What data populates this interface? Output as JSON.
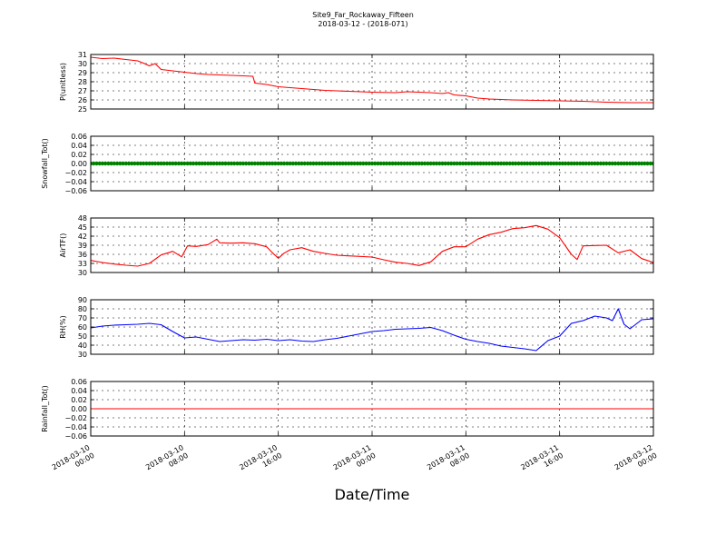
{
  "title_line1": "Site9_Far_Rockaway_Fifteen",
  "title_line2": "2018-03-12 - (2018-071)",
  "xlabel": "Date/Time",
  "x_ticks": [
    {
      "line1": "2018-03-10",
      "line2": "00:00"
    },
    {
      "line1": "2018-03-10",
      "line2": "08:00"
    },
    {
      "line1": "2018-03-10",
      "line2": "16:00"
    },
    {
      "line1": "2018-03-11",
      "line2": "00:00"
    },
    {
      "line1": "2018-03-11",
      "line2": "08:00"
    },
    {
      "line1": "2018-03-11",
      "line2": "16:00"
    },
    {
      "line1": "2018-03-12",
      "line2": "00:00"
    }
  ],
  "chart_data": [
    {
      "type": "line",
      "ylabel": "P(unitless)",
      "xlim": [
        "2018-03-10 00:00",
        "2018-03-12 00:00"
      ],
      "ylim": [
        25,
        31
      ],
      "yticks": [
        "25",
        "26",
        "27",
        "28",
        "29",
        "30",
        "31"
      ],
      "grid": true,
      "color": "#ff0000",
      "points": [
        [
          "2018-03-10 00:00",
          30.7
        ],
        [
          "2018-03-10 01:00",
          30.55
        ],
        [
          "2018-03-10 02:00",
          30.6
        ],
        [
          "2018-03-10 03:00",
          30.45
        ],
        [
          "2018-03-10 04:00",
          30.3
        ],
        [
          "2018-03-10 04:30",
          30.05
        ],
        [
          "2018-03-10 05:00",
          29.75
        ],
        [
          "2018-03-10 05:30",
          30.0
        ],
        [
          "2018-03-10 06:00",
          29.35
        ],
        [
          "2018-03-10 07:00",
          29.2
        ],
        [
          "2018-03-10 08:00",
          29.05
        ],
        [
          "2018-03-10 09:00",
          28.9
        ],
        [
          "2018-03-10 10:00",
          28.8
        ],
        [
          "2018-03-10 11:00",
          28.75
        ],
        [
          "2018-03-10 12:00",
          28.7
        ],
        [
          "2018-03-10 13:00",
          28.65
        ],
        [
          "2018-03-10 13:50",
          28.6
        ],
        [
          "2018-03-10 14:00",
          27.85
        ],
        [
          "2018-03-10 15:00",
          27.7
        ],
        [
          "2018-03-10 16:00",
          27.45
        ],
        [
          "2018-03-10 17:00",
          27.35
        ],
        [
          "2018-03-10 18:00",
          27.25
        ],
        [
          "2018-03-10 19:00",
          27.15
        ],
        [
          "2018-03-10 20:00",
          27.05
        ],
        [
          "2018-03-10 21:00",
          27.0
        ],
        [
          "2018-03-10 22:00",
          26.95
        ],
        [
          "2018-03-11 00:00",
          26.85
        ],
        [
          "2018-03-11 02:00",
          26.8
        ],
        [
          "2018-03-11 03:00",
          26.9
        ],
        [
          "2018-03-11 04:00",
          26.85
        ],
        [
          "2018-03-11 05:00",
          26.8
        ],
        [
          "2018-03-11 06:00",
          26.7
        ],
        [
          "2018-03-11 06:30",
          26.8
        ],
        [
          "2018-03-11 07:00",
          26.55
        ],
        [
          "2018-03-11 08:00",
          26.45
        ],
        [
          "2018-03-11 09:00",
          26.2
        ],
        [
          "2018-03-11 10:00",
          26.1
        ],
        [
          "2018-03-11 12:00",
          26.0
        ],
        [
          "2018-03-11 14:00",
          25.95
        ],
        [
          "2018-03-11 16:00",
          25.9
        ],
        [
          "2018-03-11 18:00",
          25.85
        ],
        [
          "2018-03-11 20:00",
          25.75
        ],
        [
          "2018-03-11 22:00",
          25.7
        ],
        [
          "2018-03-12 00:00",
          25.7
        ]
      ]
    },
    {
      "type": "scatter",
      "ylabel": "Snowfall_Tot()",
      "xlim": [
        "2018-03-10 00:00",
        "2018-03-12 00:00"
      ],
      "ylim": [
        -0.06,
        0.06
      ],
      "yticks": [
        "−0.06",
        "−0.04",
        "−0.02",
        "0.00",
        "0.02",
        "0.04",
        "0.06"
      ],
      "grid": true,
      "color": "#008000",
      "interval_minutes": 15,
      "constant_value": 0.0
    },
    {
      "type": "line",
      "ylabel": "AirTF()",
      "xlim": [
        "2018-03-10 00:00",
        "2018-03-12 00:00"
      ],
      "ylim": [
        30,
        48
      ],
      "yticks": [
        "30",
        "33",
        "36",
        "39",
        "42",
        "45",
        "48"
      ],
      "grid": true,
      "color": "#ff0000",
      "points": [
        [
          "2018-03-10 00:00",
          34.0
        ],
        [
          "2018-03-10 01:00",
          33.3
        ],
        [
          "2018-03-10 02:00",
          32.8
        ],
        [
          "2018-03-10 03:00",
          32.4
        ],
        [
          "2018-03-10 04:00",
          32.1
        ],
        [
          "2018-03-10 05:00",
          33.0
        ],
        [
          "2018-03-10 06:00",
          35.8
        ],
        [
          "2018-03-10 07:00",
          37.0
        ],
        [
          "2018-03-10 07:45",
          35.2
        ],
        [
          "2018-03-10 08:15",
          38.8
        ],
        [
          "2018-03-10 09:00",
          38.6
        ],
        [
          "2018-03-10 10:00",
          39.2
        ],
        [
          "2018-03-10 10:45",
          41.0
        ],
        [
          "2018-03-10 11:00",
          39.8
        ],
        [
          "2018-03-10 12:00",
          39.7
        ],
        [
          "2018-03-10 13:00",
          39.8
        ],
        [
          "2018-03-10 14:00",
          39.5
        ],
        [
          "2018-03-10 15:00",
          38.5
        ],
        [
          "2018-03-10 15:30",
          36.5
        ],
        [
          "2018-03-10 16:00",
          34.7
        ],
        [
          "2018-03-10 16:30",
          36.4
        ],
        [
          "2018-03-10 17:00",
          37.5
        ],
        [
          "2018-03-10 18:00",
          38.2
        ],
        [
          "2018-03-10 19:00",
          37.0
        ],
        [
          "2018-03-10 20:00",
          36.3
        ],
        [
          "2018-03-10 21:00",
          35.7
        ],
        [
          "2018-03-10 22:00",
          35.5
        ],
        [
          "2018-03-11 00:00",
          35.1
        ],
        [
          "2018-03-11 01:00",
          34.2
        ],
        [
          "2018-03-11 02:00",
          33.4
        ],
        [
          "2018-03-11 03:00",
          33.0
        ],
        [
          "2018-03-11 04:00",
          32.3
        ],
        [
          "2018-03-11 05:00",
          33.5
        ],
        [
          "2018-03-11 06:00",
          37.0
        ],
        [
          "2018-03-11 07:00",
          38.5
        ],
        [
          "2018-03-11 08:00",
          38.5
        ],
        [
          "2018-03-11 09:00",
          41.0
        ],
        [
          "2018-03-11 10:00",
          42.5
        ],
        [
          "2018-03-11 11:00",
          43.3
        ],
        [
          "2018-03-11 12:00",
          44.5
        ],
        [
          "2018-03-11 13:00",
          44.8
        ],
        [
          "2018-03-11 14:00",
          45.5
        ],
        [
          "2018-03-11 15:00",
          44.3
        ],
        [
          "2018-03-11 16:00",
          41.5
        ],
        [
          "2018-03-11 17:00",
          36.0
        ],
        [
          "2018-03-11 17:30",
          34.3
        ],
        [
          "2018-03-11 18:00",
          38.8
        ],
        [
          "2018-03-11 19:00",
          38.9
        ],
        [
          "2018-03-11 20:00",
          39.0
        ],
        [
          "2018-03-11 21:00",
          36.5
        ],
        [
          "2018-03-11 22:00",
          37.5
        ],
        [
          "2018-03-11 23:00",
          34.6
        ],
        [
          "2018-03-12 00:00",
          33.3
        ]
      ]
    },
    {
      "type": "line",
      "ylabel": "RH(%)",
      "xlim": [
        "2018-03-10 00:00",
        "2018-03-12 00:00"
      ],
      "ylim": [
        30,
        90
      ],
      "yticks": [
        "30",
        "40",
        "50",
        "60",
        "70",
        "80",
        "90"
      ],
      "grid": true,
      "color": "#0000ff",
      "points": [
        [
          "2018-03-10 00:00",
          59.0
        ],
        [
          "2018-03-10 01:00",
          61.0
        ],
        [
          "2018-03-10 02:00",
          62.0
        ],
        [
          "2018-03-10 03:00",
          62.5
        ],
        [
          "2018-03-10 04:00",
          63.0
        ],
        [
          "2018-03-10 05:00",
          64.0
        ],
        [
          "2018-03-10 06:00",
          62.5
        ],
        [
          "2018-03-10 07:00",
          55.0
        ],
        [
          "2018-03-10 08:00",
          48.0
        ],
        [
          "2018-03-10 09:00",
          49.0
        ],
        [
          "2018-03-10 10:00",
          46.5
        ],
        [
          "2018-03-10 11:00",
          44.0
        ],
        [
          "2018-03-10 12:00",
          45.0
        ],
        [
          "2018-03-10 13:00",
          46.0
        ],
        [
          "2018-03-10 14:00",
          45.5
        ],
        [
          "2018-03-10 15:00",
          46.5
        ],
        [
          "2018-03-10 16:00",
          45.0
        ],
        [
          "2018-03-10 17:00",
          46.0
        ],
        [
          "2018-03-10 18:00",
          44.5
        ],
        [
          "2018-03-10 19:00",
          44.0
        ],
        [
          "2018-03-10 20:00",
          46.0
        ],
        [
          "2018-03-10 21:00",
          47.5
        ],
        [
          "2018-03-10 22:00",
          50.0
        ],
        [
          "2018-03-10 23:00",
          52.5
        ],
        [
          "2018-03-11 00:00",
          55.0
        ],
        [
          "2018-03-11 01:00",
          56.0
        ],
        [
          "2018-03-11 02:00",
          57.5
        ],
        [
          "2018-03-11 03:00",
          58.0
        ],
        [
          "2018-03-11 04:00",
          58.5
        ],
        [
          "2018-03-11 05:00",
          59.5
        ],
        [
          "2018-03-11 06:00",
          56.0
        ],
        [
          "2018-03-11 07:00",
          51.0
        ],
        [
          "2018-03-11 08:00",
          46.5
        ],
        [
          "2018-03-11 09:00",
          44.0
        ],
        [
          "2018-03-11 10:00",
          42.0
        ],
        [
          "2018-03-11 11:00",
          39.0
        ],
        [
          "2018-03-11 12:00",
          37.5
        ],
        [
          "2018-03-11 13:00",
          36.0
        ],
        [
          "2018-03-11 14:00",
          34.0
        ],
        [
          "2018-03-11 15:00",
          45.0
        ],
        [
          "2018-03-11 16:00",
          50.0
        ],
        [
          "2018-03-11 17:00",
          64.0
        ],
        [
          "2018-03-11 18:00",
          67.0
        ],
        [
          "2018-03-11 19:00",
          72.0
        ],
        [
          "2018-03-11 20:00",
          70.0
        ],
        [
          "2018-03-11 20:30",
          67.0
        ],
        [
          "2018-03-11 21:00",
          80.0
        ],
        [
          "2018-03-11 21:30",
          63.0
        ],
        [
          "2018-03-11 22:00",
          58.0
        ],
        [
          "2018-03-11 23:00",
          68.0
        ],
        [
          "2018-03-12 00:00",
          69.0
        ]
      ]
    },
    {
      "type": "line",
      "ylabel": "Rainfall_Tot()",
      "xlim": [
        "2018-03-10 00:00",
        "2018-03-12 00:00"
      ],
      "ylim": [
        -0.06,
        0.06
      ],
      "yticks": [
        "−0.06",
        "−0.04",
        "−0.02",
        "0.00",
        "0.02",
        "0.04",
        "0.06"
      ],
      "grid": true,
      "color": "#ff0000",
      "points": [
        [
          "2018-03-10 00:00",
          0.0
        ],
        [
          "2018-03-12 00:00",
          0.0
        ]
      ]
    }
  ]
}
